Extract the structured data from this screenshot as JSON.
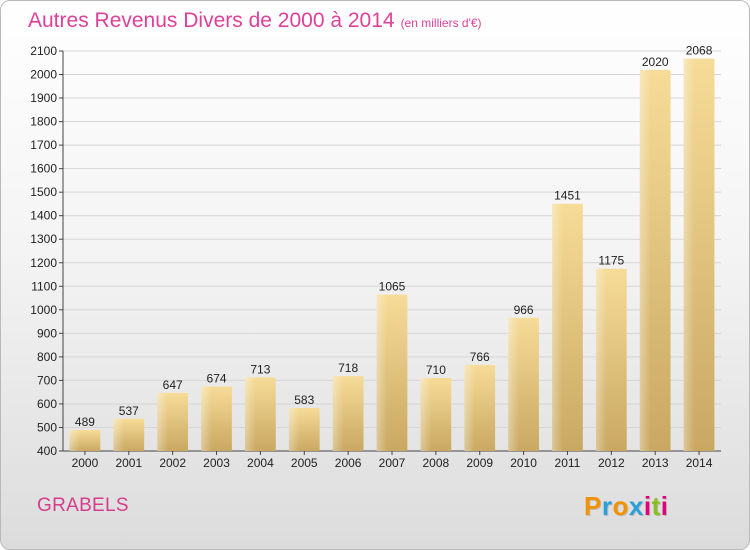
{
  "header": {
    "title": "Autres Revenus Divers de 2000 à 2014",
    "unit_note": "(en milliers d'€)"
  },
  "footer": {
    "commune": "GRABELS",
    "logo_text": "Proxiti",
    "logo_letters": [
      {
        "char": "P",
        "color": "#f39200"
      },
      {
        "char": "r",
        "color": "#2a9fd8"
      },
      {
        "char": "o",
        "color": "#f39200"
      },
      {
        "char": "x",
        "color": "#2a9fd8"
      },
      {
        "char": "i",
        "color": "#e2007a"
      },
      {
        "char": "t",
        "color": "#8cbe22"
      },
      {
        "char": "i",
        "color": "#e2007a"
      }
    ]
  },
  "colors": {
    "title": "#e0409a",
    "commune": "#d63c8c",
    "bar_light": "#f6dc98",
    "bar_dark": "#c9a862",
    "grid": "#d5d5d5"
  },
  "chart_data": {
    "type": "bar",
    "title": "Autres Revenus Divers de 2000 à 2014",
    "subtitle": "(en milliers d'€)",
    "categories": [
      "2000",
      "2001",
      "2002",
      "2003",
      "2004",
      "2005",
      "2006",
      "2007",
      "2008",
      "2009",
      "2010",
      "2011",
      "2012",
      "2013",
      "2014"
    ],
    "values": [
      489,
      537,
      647,
      674,
      713,
      583,
      718,
      1065,
      710,
      766,
      966,
      1451,
      1175,
      2020,
      2068
    ],
    "ylim": [
      400,
      2100
    ],
    "yticks": [
      400,
      500,
      600,
      700,
      800,
      900,
      1000,
      1100,
      1200,
      1300,
      1400,
      1500,
      1600,
      1700,
      1800,
      1900,
      2000,
      2100
    ],
    "xlabel": "",
    "ylabel": "",
    "grid": true,
    "legend": "none"
  }
}
